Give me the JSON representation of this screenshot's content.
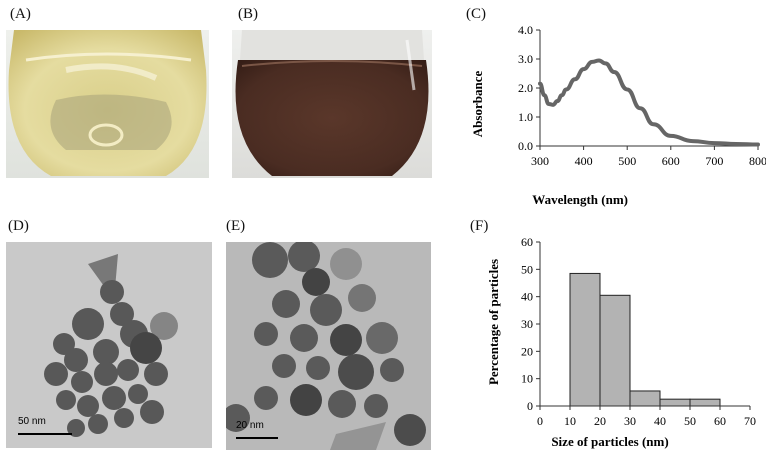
{
  "panels": {
    "a": {
      "label": "(A)"
    },
    "b": {
      "label": "(B)"
    },
    "c": {
      "label": "(C)"
    },
    "d": {
      "label": "(D)",
      "scale_bar": "50 nm"
    },
    "e": {
      "label": "(E)",
      "scale_bar": "20 nm"
    },
    "f": {
      "label": "(F)"
    }
  },
  "colors": {
    "flask_a_liquid": "#e7dc9a",
    "flask_b_liquid": "#4f2f24",
    "tem_background": "#c9c9c9",
    "particle": "#454545",
    "curve": "#666666",
    "bar_fill": "#b3b3b3"
  },
  "chart_data": [
    {
      "type": "line",
      "title": "",
      "xlabel": "Wavelength (nm)",
      "ylabel": "Absorbance",
      "xlim": [
        300,
        800
      ],
      "ylim": [
        0,
        4
      ],
      "x_ticks": [
        "300",
        "400",
        "500",
        "600",
        "700",
        "800"
      ],
      "y_ticks": [
        "0.0",
        "1.0",
        "2.0",
        "3.0",
        "4.0"
      ],
      "grid": false,
      "x": [
        300,
        310,
        320,
        330,
        340,
        350,
        360,
        380,
        400,
        420,
        435,
        450,
        470,
        500,
        530,
        560,
        600,
        650,
        700,
        750,
        800
      ],
      "y": [
        2.15,
        1.75,
        1.45,
        1.42,
        1.55,
        1.75,
        1.95,
        2.3,
        2.65,
        2.9,
        2.95,
        2.85,
        2.55,
        1.95,
        1.3,
        0.75,
        0.35,
        0.17,
        0.1,
        0.07,
        0.05
      ]
    },
    {
      "type": "bar",
      "title": "",
      "xlabel": "Size of particles (nm)",
      "ylabel": "Percentage of particles",
      "xlim": [
        0,
        70
      ],
      "ylim": [
        0,
        60
      ],
      "x_ticks": [
        "0",
        "10",
        "20",
        "30",
        "40",
        "50",
        "60",
        "70"
      ],
      "y_ticks": [
        "0",
        "10",
        "20",
        "30",
        "40",
        "50",
        "60"
      ],
      "bins": [
        [
          10,
          20
        ],
        [
          20,
          30
        ],
        [
          30,
          40
        ],
        [
          40,
          50
        ],
        [
          50,
          60
        ]
      ],
      "values": [
        48.5,
        40.5,
        5.5,
        2.5,
        2.5
      ],
      "grid": false
    }
  ]
}
